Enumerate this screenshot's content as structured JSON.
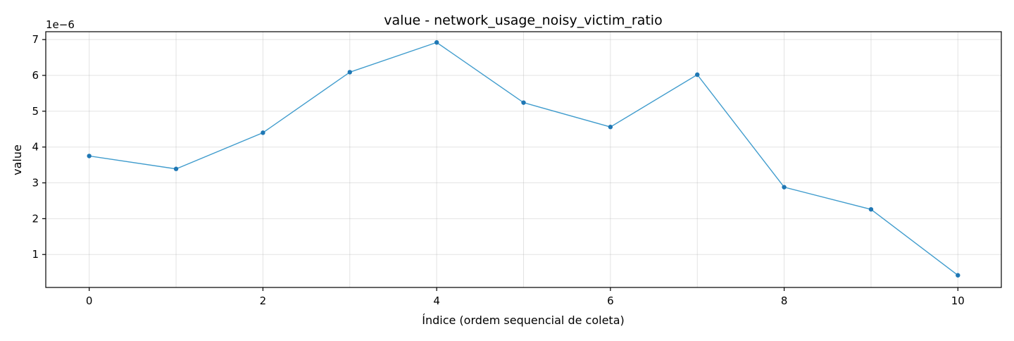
{
  "chart_data": {
    "type": "line",
    "title": "value - network_usage_noisy_victim_ratio",
    "xlabel": "Índice (ordem sequencial de coleta)",
    "ylabel": "value",
    "y_offset_label": "1e−6",
    "y_scale": 1e-06,
    "x": [
      0,
      1,
      2,
      3,
      4,
      5,
      6,
      7,
      8,
      9,
      10
    ],
    "series": [
      {
        "values": [
          3.75e-06,
          3.39e-06,
          4.4e-06,
          6.09e-06,
          6.92e-06,
          5.24e-06,
          4.56e-06,
          6.02e-06,
          2.88e-06,
          2.26e-06,
          4.2e-07
        ]
      }
    ],
    "xlim": [
      -0.5,
      10.5
    ],
    "ylim": [
      8e-08,
      7.22e-06
    ],
    "x_ticks": [
      0,
      2,
      4,
      6,
      8,
      10
    ],
    "x_tick_labels": [
      "0",
      "2",
      "4",
      "6",
      "8",
      "10"
    ],
    "y_ticks": [
      1e-06,
      2e-06,
      3e-06,
      4e-06,
      5e-06,
      6e-06,
      7e-06
    ],
    "y_tick_labels": [
      "1",
      "2",
      "3",
      "4",
      "5",
      "6",
      "7"
    ],
    "grid": true,
    "colors": {
      "line": "#1f8bc4",
      "marker": "#1f77b4"
    }
  }
}
